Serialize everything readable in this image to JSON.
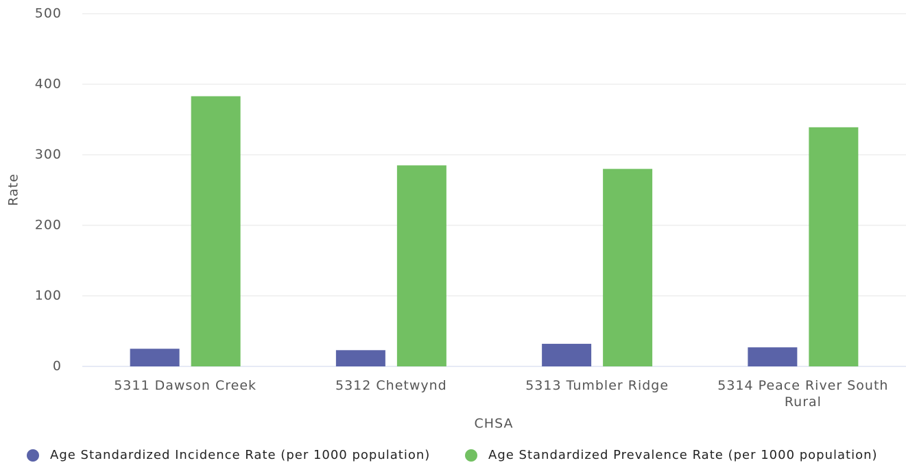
{
  "chart_data": {
    "type": "bar",
    "x_label": "CHSA",
    "y_label": "Rate",
    "categories": [
      "5311 Dawson Creek",
      "5312 Chetwynd",
      "5313 Tumbler Ridge",
      "5314 Peace River South Rural"
    ],
    "series": [
      {
        "name": "Age Standardized Incidence Rate (per 1000 population)",
        "color": "#5a63a8",
        "values": [
          25,
          23,
          32,
          27
        ]
      },
      {
        "name": "Age Standardized Prevalence Rate (per 1000 population)",
        "color": "#72c062",
        "values": [
          383,
          285,
          280,
          339
        ]
      }
    ],
    "ylim": [
      0,
      500
    ],
    "yticks": [
      0,
      100,
      200,
      300,
      400,
      500
    ],
    "grid": true
  }
}
